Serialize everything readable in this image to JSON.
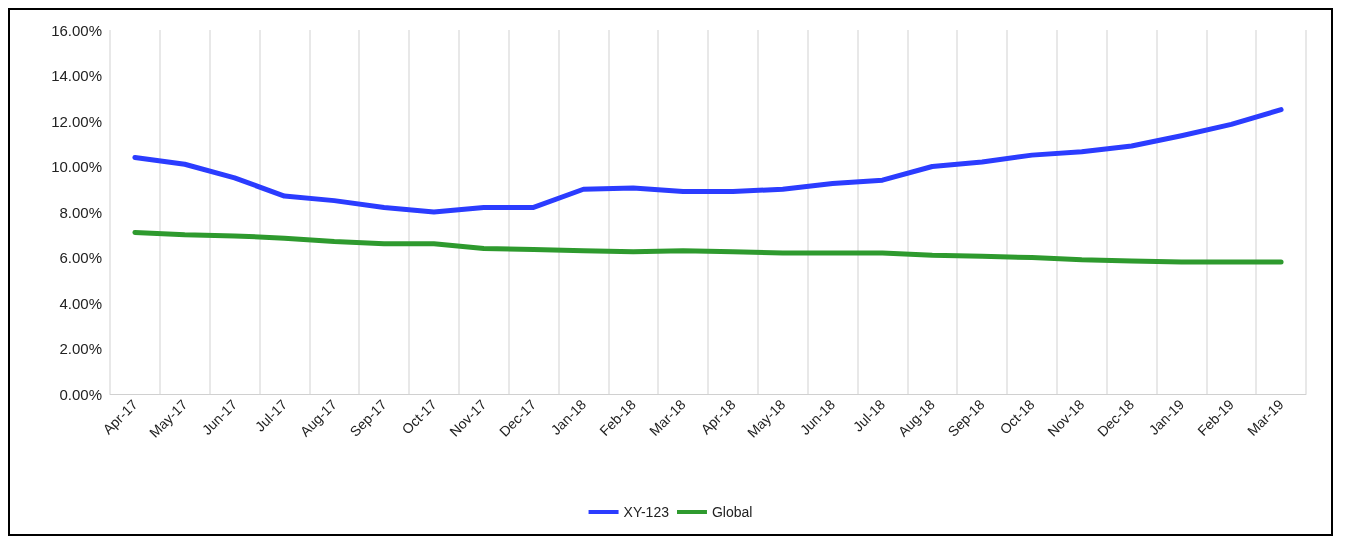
{
  "chart_data": {
    "type": "line",
    "categories": [
      "Apr-17",
      "May-17",
      "Jun-17",
      "Jul-17",
      "Aug-17",
      "Sep-17",
      "Oct-17",
      "Nov-17",
      "Dec-17",
      "Jan-18",
      "Feb-18",
      "Mar-18",
      "Apr-18",
      "May-18",
      "Jun-18",
      "Jul-18",
      "Aug-18",
      "Sep-18",
      "Oct-18",
      "Nov-18",
      "Dec-18",
      "Jan-19",
      "Feb-19",
      "Mar-19"
    ],
    "series": [
      {
        "name": "XY-123",
        "color": "#2b3cff",
        "values": [
          10.4,
          10.1,
          9.5,
          8.7,
          8.5,
          8.2,
          8.0,
          8.2,
          8.2,
          9.0,
          9.05,
          8.9,
          8.9,
          9.0,
          9.25,
          9.4,
          10.0,
          10.2,
          10.5,
          10.65,
          10.9,
          11.35,
          11.85,
          12.5
        ]
      },
      {
        "name": "Global",
        "color": "#2e9a2e",
        "values": [
          7.1,
          7.0,
          6.95,
          6.85,
          6.7,
          6.6,
          6.6,
          6.4,
          6.35,
          6.3,
          6.25,
          6.3,
          6.25,
          6.2,
          6.2,
          6.2,
          6.1,
          6.05,
          6.0,
          5.9,
          5.85,
          5.8,
          5.8,
          5.8
        ]
      }
    ],
    "ylim": [
      0,
      16
    ],
    "yticks": [
      {
        "value": 0,
        "label": "0.00%"
      },
      {
        "value": 2,
        "label": "2.00%"
      },
      {
        "value": 4,
        "label": "4.00%"
      },
      {
        "value": 6,
        "label": "6.00%"
      },
      {
        "value": 8,
        "label": "8.00%"
      },
      {
        "value": 10,
        "label": "10.00%"
      },
      {
        "value": 12,
        "label": "12.00%"
      },
      {
        "value": 14,
        "label": "14.00%"
      },
      {
        "value": 16,
        "label": "16.00%"
      }
    ],
    "grid": "x",
    "legend": "bottom",
    "marker": "none",
    "line_style": "solid"
  }
}
